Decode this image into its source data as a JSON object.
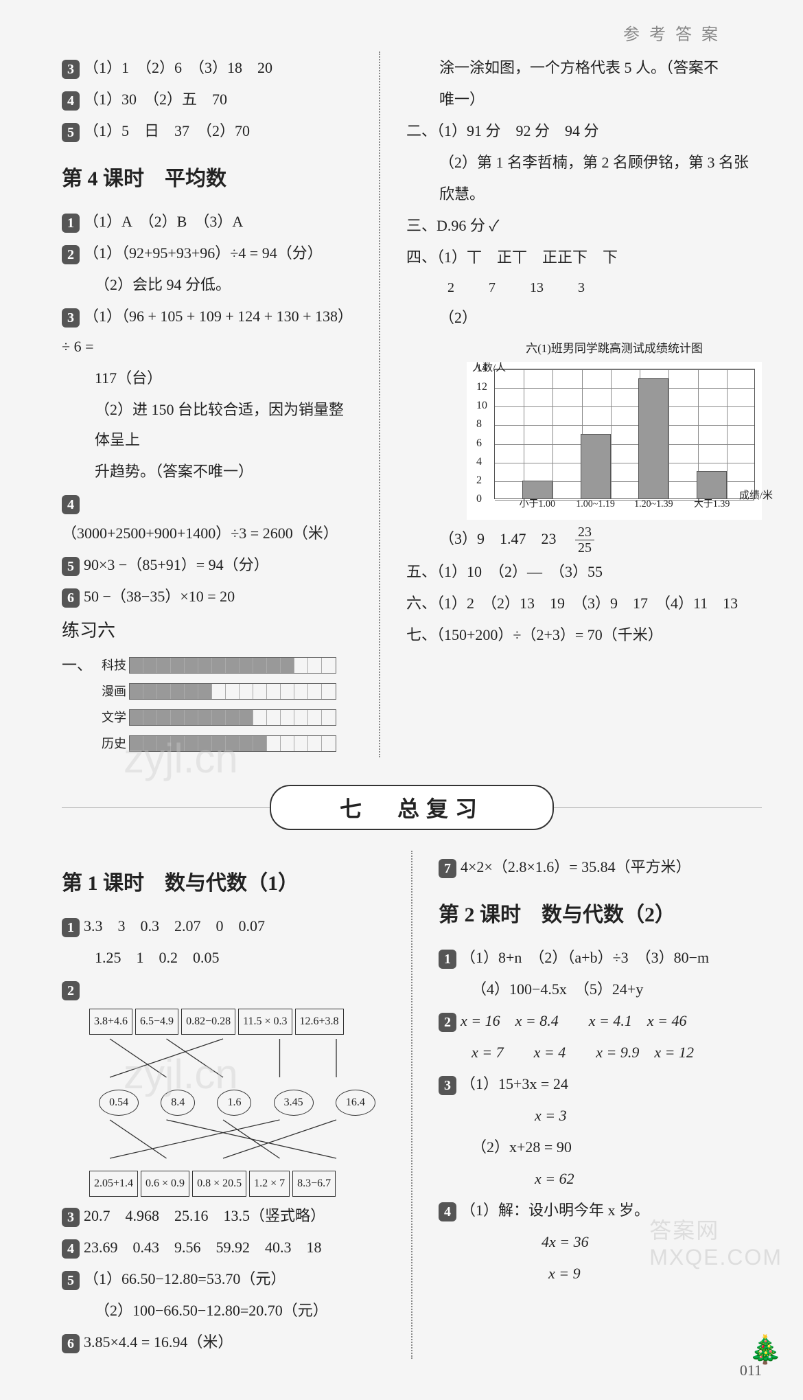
{
  "header": "参 考 答 案",
  "left": {
    "l3": "（1）1　（2）6　（3）18　20",
    "l4": "（1）30　（2）五　70",
    "l5": "（1）5　日　37　（2）70",
    "sec4_title": "第 4 课时　平均数",
    "s4_1": "（1）A　（2）B　（3）A",
    "s4_2a": "（1）（92+95+93+96）÷4 = 94（分）",
    "s4_2b": "（2）会比 94 分低。",
    "s4_3a": "（1）（96 + 105 + 109 + 124 + 130 + 138）÷ 6 =",
    "s4_3a2": "117（台）",
    "s4_3b": "（2）进 150 台比较合适，因为销量整体呈上",
    "s4_3b2": "升趋势。（答案不唯一）",
    "s4_4": "（3000+2500+900+1400）÷3 = 2600（米）",
    "s4_5": "90×3 −（85+91）= 94（分）",
    "s4_6": "50 −（38−35）×10 = 20",
    "prac6": "练习六",
    "yi": "一、",
    "cats": [
      "科技",
      "漫画",
      "文学",
      "历史"
    ],
    "fills": [
      12,
      6,
      9,
      10
    ],
    "total_cells": 15
  },
  "right": {
    "r0a": "涂一涂如图，一个方格代表 5 人。（答案不",
    "r0b": "唯一）",
    "er": "二、（1）91 分　92 分　94 分",
    "er2": "（2）第 1 名李哲楠，第 2 名顾伊铭，第 3 名张",
    "er3": "欣慧。",
    "san": "三、D.96 分 ✓",
    "si": "四、（1）丅　正丅　正正下　下",
    "si_nums": [
      "2",
      "7",
      "13",
      "3"
    ],
    "chart_title": "六(1)班男同学跳高测试成绩统计图",
    "y_axis": "人数/人",
    "y_ticks": [
      "0",
      "2",
      "4",
      "6",
      "8",
      "10",
      "12",
      "14"
    ],
    "x_labels": [
      "小于1.00",
      "1.00~1.19",
      "1.20~1.39",
      "大于1.39"
    ],
    "x_axis": "成绩/米",
    "bars": [
      2,
      7,
      13,
      3
    ],
    "si3": "（3）9　1.47　23　",
    "frac_n": "23",
    "frac_d": "25",
    "wu": "五、（1）10　（2）—　（3）55",
    "liu": "六、（1）2　（2）13　19　（3）9　17　（4）11　13",
    "qi": "七、（150+200）÷（2+3）= 70（千米）"
  },
  "banner": "七　总复习",
  "bl": {
    "t1": "第 1 课时　数与代数（1）",
    "l1a": "3.3　3　0.3　2.07　0　0.07",
    "l1b": "1.25　1　0.2　0.05",
    "top": [
      "3.8+4.6",
      "6.5−4.9",
      "0.82−0.28",
      "11.5 × 0.3",
      "12.6+3.8"
    ],
    "mid": [
      "0.54",
      "8.4",
      "1.6",
      "3.45",
      "16.4"
    ],
    "bot": [
      "2.05+1.4",
      "0.6 × 0.9",
      "0.8 × 20.5",
      "1.2 × 7",
      "8.3−6.7"
    ],
    "l3": "20.7　4.968　25.16　13.5（竖式略）",
    "l4": "23.69　0.43　9.56　59.92　40.3　18",
    "l5a": "（1）66.50−12.80=53.70（元）",
    "l5b": "（2）100−66.50−12.80=20.70（元）",
    "l6": "3.85×4.4 = 16.94（米）"
  },
  "br": {
    "l7": "4×2×（2.8×1.6）= 35.84（平方米）",
    "t2": "第 2 课时　数与代数（2）",
    "l1a": "（1）8+n　（2）（a+b）÷3　（3）80−m",
    "l1b": "（4）100−4.5x　（5）24+y",
    "l2a": "x = 16　x = 8.4　　x = 4.1　x = 46",
    "l2b": "x = 7　　x = 4　　x = 9.9　x = 12",
    "l3a": "（1）15+3x = 24",
    "l3b": "x = 3",
    "l3c": "（2）x+28 = 90",
    "l3d": "x = 62",
    "l4a": "（1）解：设小明今年 x 岁。",
    "l4b": "4x = 36",
    "l4c": "x = 9"
  },
  "pagenum": "011",
  "watermark": "MXQE.COM",
  "wm_top": "答案网"
}
